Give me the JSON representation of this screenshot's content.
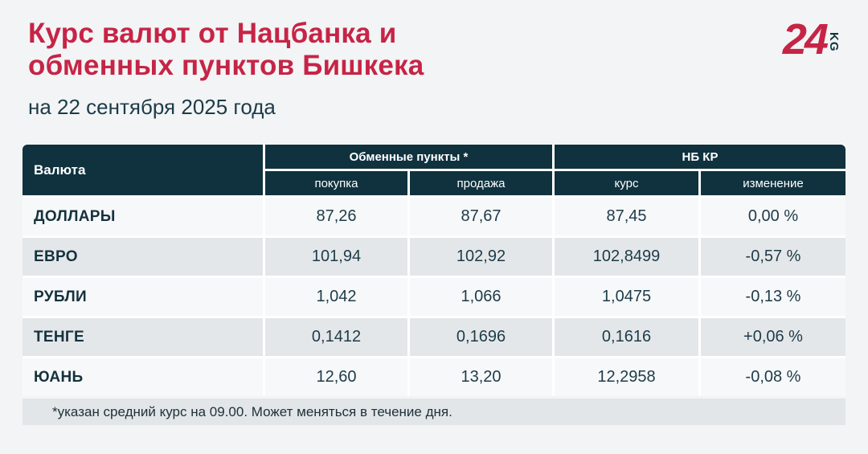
{
  "page": {
    "title": "Курс валют от Нацбанка и\nобменных пунктов Бишкека",
    "subtitle": "на 22 сентября 2025 года",
    "footnote": "*указан средний курс на 09.00. Может меняться в течение дня."
  },
  "logo": {
    "number": "24",
    "suffix": "KG"
  },
  "colors": {
    "accent_red": "#C62446",
    "header_dark": "#0F323E",
    "text_dark": "#1D3B49",
    "row_light": "#F7F8F9",
    "row_striped": "#E4E7E9",
    "footnote_bg": "#E2E6E8",
    "page_bg": "#F2F4F5"
  },
  "table": {
    "col_currency": "Валюта",
    "group_exchange": "Обменные пункты *",
    "group_nbkr": "НБ КР",
    "sub_buy": "покупка",
    "sub_sell": "продажа",
    "sub_rate": "курс",
    "sub_change": "изменение",
    "rows": [
      {
        "name": "ДОЛЛАРЫ",
        "buy": "87,26",
        "sell": "87,67",
        "rate": "87,45",
        "change": "0,00 %"
      },
      {
        "name": "ЕВРО",
        "buy": "101,94",
        "sell": "102,92",
        "rate": "102,8499",
        "change": "-0,57 %"
      },
      {
        "name": "РУБЛИ",
        "buy": "1,042",
        "sell": "1,066",
        "rate": "1,0475",
        "change": "-0,13 %"
      },
      {
        "name": "ТЕНГЕ",
        "buy": "0,1412",
        "sell": "0,1696",
        "rate": "0,1616",
        "change": "+0,06 %"
      },
      {
        "name": "ЮАНЬ",
        "buy": "12,60",
        "sell": "13,20",
        "rate": "12,2958",
        "change": "-0,08 %"
      }
    ]
  },
  "chart_data": {
    "type": "table",
    "title": "Курс валют от Нацбанка и обменных пунктов Бишкека",
    "subtitle": "на 22 сентября 2025 года",
    "column_groups": [
      "Валюта",
      "Обменные пункты *",
      "НБ КР"
    ],
    "columns": [
      "Валюта",
      "покупка",
      "продажа",
      "курс",
      "изменение"
    ],
    "rows": [
      [
        "ДОЛЛАРЫ",
        "87,26",
        "87,67",
        "87,45",
        "0,00 %"
      ],
      [
        "ЕВРО",
        "101,94",
        "102,92",
        "102,8499",
        "-0,57 %"
      ],
      [
        "РУБЛИ",
        "1,042",
        "1,066",
        "1,0475",
        "-0,13 %"
      ],
      [
        "ТЕНГЕ",
        "0,1412",
        "0,1696",
        "0,1616",
        "+0,06 %"
      ],
      [
        "ЮАНЬ",
        "12,60",
        "13,20",
        "12,2958",
        "-0,08 %"
      ]
    ],
    "footnote": "*указан средний курс на 09.00. Может меняться в течение дня."
  }
}
